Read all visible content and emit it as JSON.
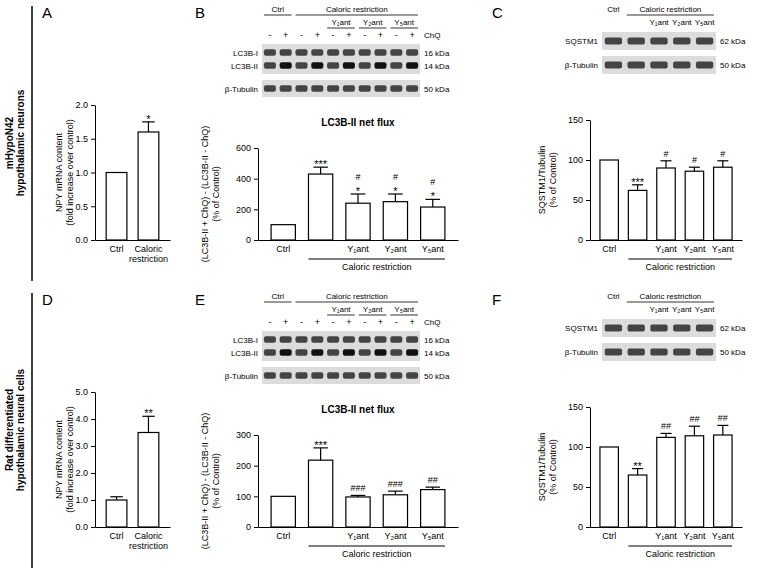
{
  "panels": [
    "A",
    "B",
    "C",
    "D",
    "E",
    "F"
  ],
  "row_labels": [
    [
      "mHypoN42",
      "hypothalamic neurons"
    ],
    [
      "Rat differentiated",
      "hypothalamic neural cells"
    ]
  ],
  "chart_data": [
    {
      "type": "bar",
      "categories": [
        "Ctrl",
        "Caloric restriction"
      ],
      "values": [
        1.0,
        1.6
      ],
      "errors": [
        null,
        0.15
      ],
      "stars": [
        null,
        "*"
      ],
      "ylabel": [
        "NPY mRNA content",
        "(fold increase over control)"
      ],
      "ylim": [
        0,
        2
      ],
      "yticks": [
        {
          "value": 0,
          "label": "0.0"
        },
        0.5,
        {
          "value": 1,
          "label": "1.0"
        },
        1.5,
        {
          "value": 2,
          "label": "2.0"
        }
      ],
      "color": "#ffffff"
    },
    {
      "type": "bar",
      "title": "LC3B-II net flux",
      "categories": [
        "Ctrl",
        null,
        "Y₁ant",
        "Y₂ant",
        "Y₅ant"
      ],
      "x_group": {
        "label": "Caloric restriction",
        "categories": [
          1,
          2,
          3,
          4
        ]
      },
      "values": [
        100,
        430,
        240,
        250,
        215
      ],
      "errors": [
        null,
        45,
        60,
        50,
        50
      ],
      "stars": [
        null,
        "***",
        "*",
        "*",
        "*"
      ],
      "hashes": [
        null,
        null,
        "#",
        "#",
        "#"
      ],
      "ylabel": [
        "(LC3B-II + ChQ) - (LC3B-II - ChQ)",
        "(% of Control)"
      ],
      "ylim": [
        0,
        600
      ],
      "yticks": [
        0,
        200,
        400,
        600
      ],
      "color": "#ffffff",
      "blot": {
        "headers": [
          [
            {
              "label": "Ctrl",
              "span": 2
            },
            {
              "label": "Caloric restriction",
              "span": 8
            }
          ],
          [
            {
              "label": null,
              "span": 4
            },
            {
              "label": "Y₁ant",
              "span": 2
            },
            {
              "label": "Y₂ant",
              "span": 2
            },
            {
              "label": "Y₅ant",
              "span": 2
            }
          ]
        ],
        "lanes": [
          "-",
          "+",
          "-",
          "+",
          "-",
          "+",
          "-",
          "+",
          "-",
          "+"
        ],
        "treatment": "ChQ",
        "strips": [
          {
            "rows": [
              {
                "label": "LC3B-I",
                "size": "16 kDa"
              },
              {
                "label": "LC3B-II",
                "size": "14 kDa"
              }
            ]
          },
          {
            "rows": [
              {
                "label": "β-Tubulin",
                "size": "50 kDa"
              }
            ]
          }
        ]
      }
    },
    {
      "type": "bar",
      "categories": [
        "Ctrl",
        null,
        "Y₁ant",
        "Y₂ant",
        "Y₅ant"
      ],
      "x_group": {
        "label": "Caloric restriction",
        "categories": [
          1,
          2,
          3,
          4
        ]
      },
      "values": [
        100,
        62,
        90,
        86,
        91
      ],
      "errors": [
        null,
        7,
        9,
        5,
        8
      ],
      "stars": [
        null,
        "***",
        null,
        null,
        null
      ],
      "hashes": [
        null,
        null,
        "#",
        "#",
        "#"
      ],
      "ylabel": [
        "SQSTM1/Tubulin",
        "(% of Control)"
      ],
      "ylim": [
        0,
        150
      ],
      "yticks": [
        0,
        50,
        100,
        150
      ],
      "color": "#ffffff",
      "blot": {
        "headers": [
          [
            {
              "label": "Ctrl",
              "span": 1
            },
            {
              "label": "Caloric restriction",
              "span": 4
            }
          ],
          [
            {
              "label": null,
              "span": 2
            },
            {
              "label": "Y₁ant",
              "span": 1
            },
            {
              "label": "Y₂ant",
              "span": 1
            },
            {
              "label": "Y₅ant",
              "span": 1
            }
          ]
        ],
        "strips": [
          {
            "rows": [
              {
                "label": "SQSTM1",
                "size": "62 kDa"
              }
            ]
          },
          {
            "rows": [
              {
                "label": "β-Tubulin",
                "size": "50 kDa"
              }
            ]
          }
        ]
      }
    },
    {
      "type": "bar",
      "categories": [
        "Ctrl",
        "Caloric restriction"
      ],
      "values": [
        1.0,
        3.5
      ],
      "errors": [
        0.12,
        0.6
      ],
      "stars": [
        null,
        "**"
      ],
      "ylabel": [
        "NPY mRNA content",
        "(fold increase over control)"
      ],
      "ylim": [
        0,
        5
      ],
      "yticks": [
        {
          "value": 0,
          "label": "0.0"
        },
        {
          "value": 1,
          "label": "1.0"
        },
        {
          "value": 2,
          "label": "2.0"
        },
        {
          "value": 3,
          "label": "3.0"
        },
        {
          "value": 4,
          "label": "4.0"
        },
        {
          "value": 5,
          "label": "5.0"
        }
      ],
      "color": "#ffffff"
    },
    {
      "type": "bar",
      "title": "LC3B-II net flux",
      "categories": [
        "Ctrl",
        null,
        "Y₁ant",
        "Y₂ant",
        "Y₅ant"
      ],
      "x_group": {
        "label": "Caloric restriction",
        "categories": [
          1,
          2,
          3,
          4
        ]
      },
      "values": [
        100,
        218,
        98,
        105,
        122
      ],
      "errors": [
        null,
        40,
        5,
        12,
        8
      ],
      "stars": [
        null,
        "***",
        null,
        null,
        null
      ],
      "hashes": [
        null,
        null,
        "###",
        "###",
        "##"
      ],
      "ylabel": [
        "(LC3B-II + ChQ) - (LC3B-II - ChQ)",
        "(% of Control)"
      ],
      "ylim": [
        0,
        300
      ],
      "yticks": [
        0,
        100,
        200,
        300
      ],
      "color": "#ffffff",
      "blot": {
        "headers": [
          [
            {
              "label": "Ctrl",
              "span": 2
            },
            {
              "label": "Caloric restriction",
              "span": 8
            }
          ],
          [
            {
              "label": null,
              "span": 4
            },
            {
              "label": "Y₁ant",
              "span": 2
            },
            {
              "label": "Y₂ant",
              "span": 2
            },
            {
              "label": "Y₅ant",
              "span": 2
            }
          ]
        ],
        "lanes": [
          "-",
          "+",
          "-",
          "+",
          "-",
          "+",
          "-",
          "+",
          "-",
          "+"
        ],
        "treatment": "ChQ",
        "strips": [
          {
            "rows": [
              {
                "label": "LC3B-I",
                "size": "16 kDa"
              },
              {
                "label": "LC3B-II",
                "size": "14 kDa"
              }
            ]
          },
          {
            "rows": [
              {
                "label": "β-Tubulin",
                "size": "50 kDa"
              }
            ]
          }
        ]
      }
    },
    {
      "type": "bar",
      "categories": [
        "Ctrl",
        null,
        "Y₁ant",
        "Y₂ant",
        "Y₅ant"
      ],
      "x_group": {
        "label": "Caloric restriction",
        "categories": [
          1,
          2,
          3,
          4
        ]
      },
      "values": [
        100,
        65,
        112,
        114,
        115
      ],
      "errors": [
        null,
        8,
        5,
        12,
        12
      ],
      "stars": [
        null,
        "**",
        null,
        null,
        null
      ],
      "hashes": [
        null,
        null,
        "##",
        "##",
        "##"
      ],
      "ylabel": [
        "SQSTM1/Tubulin",
        "(% of Control)"
      ],
      "ylim": [
        0,
        150
      ],
      "yticks": [
        0,
        50,
        100,
        150
      ],
      "color": "#ffffff",
      "blot": {
        "headers": [
          [
            {
              "label": "Ctrl",
              "span": 1
            },
            {
              "label": "Caloric restriction",
              "span": 4
            }
          ],
          [
            {
              "label": null,
              "span": 2
            },
            {
              "label": "Y₁ant",
              "span": 1
            },
            {
              "label": "Y₂ant",
              "span": 1
            },
            {
              "label": "Y₅ant",
              "span": 1
            }
          ]
        ],
        "strips": [
          {
            "rows": [
              {
                "label": "SQSTM1",
                "size": "62 kDa"
              }
            ]
          },
          {
            "rows": [
              {
                "label": "β-Tubulin",
                "size": "50 kDa"
              }
            ]
          }
        ]
      }
    }
  ]
}
